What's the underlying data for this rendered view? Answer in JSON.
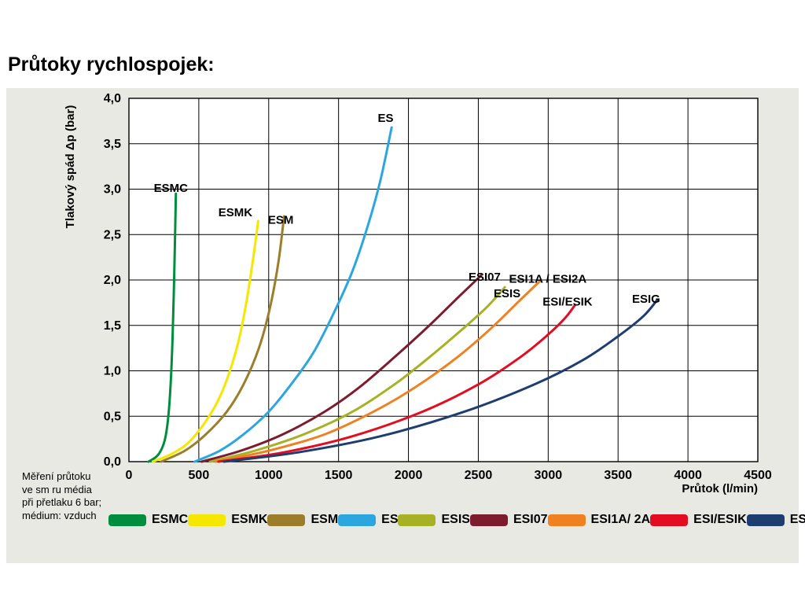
{
  "page": {
    "title": "Průtoky rychlospojek:"
  },
  "note_lines": [
    "Měření průtoku",
    "ve sm ru média",
    "při přetlaku 6 bar;",
    "médium: vzduch"
  ],
  "colors": {
    "panel_bg": "#e9e9e4",
    "plot_bg": "#ffffff",
    "grid": "#000000"
  },
  "chart_data": {
    "type": "line",
    "title": "Průtoky rychlospojek",
    "xlabel": "Průtok (l/min)",
    "ylabel": "Tlakový spád Δp (bar)",
    "xlim": [
      0,
      4500
    ],
    "ylim": [
      0,
      4
    ],
    "grid": true,
    "legend_position": "bottom",
    "x_tick_values": [
      0,
      500,
      1000,
      1500,
      2000,
      2500,
      3000,
      3500,
      4000,
      4500
    ],
    "x_tick_labels": [
      "0",
      "500",
      "1000",
      "1500",
      "2000",
      "2500",
      "3000",
      "3500",
      "4000",
      "4500"
    ],
    "y_tick_values": [
      0,
      0.5,
      1,
      1.5,
      2,
      2.5,
      3,
      3.5,
      4
    ],
    "y_tick_labels": [
      "0,0",
      "0,5",
      "1,0",
      "1,5",
      "2,0",
      "2,5",
      "3,0",
      "3,5",
      "4,0"
    ],
    "series": [
      {
        "name": "ESMC",
        "legend": "ESMC",
        "color": "#008d3e",
        "label": {
          "text": "ESMC",
          "x": 178,
          "y": 2.97
        },
        "points": [
          [
            140,
            0
          ],
          [
            200,
            0.06
          ],
          [
            240,
            0.16
          ],
          [
            265,
            0.3
          ],
          [
            285,
            0.55
          ],
          [
            300,
            0.9
          ],
          [
            312,
            1.35
          ],
          [
            321,
            1.85
          ],
          [
            329,
            2.4
          ],
          [
            336,
            2.95
          ]
        ]
      },
      {
        "name": "ESMK",
        "legend": "ESMK",
        "color": "#f6e700",
        "label": {
          "text": "ESMK",
          "x": 640,
          "y": 2.7
        },
        "points": [
          [
            170,
            0
          ],
          [
            300,
            0.08
          ],
          [
            420,
            0.2
          ],
          [
            520,
            0.38
          ],
          [
            620,
            0.62
          ],
          [
            700,
            0.9
          ],
          [
            780,
            1.3
          ],
          [
            840,
            1.75
          ],
          [
            890,
            2.25
          ],
          [
            925,
            2.65
          ]
        ]
      },
      {
        "name": "ESM",
        "legend": "ESM",
        "color": "#9c7d2a",
        "label": {
          "text": "ESM",
          "x": 995,
          "y": 2.62
        },
        "points": [
          [
            230,
            0
          ],
          [
            400,
            0.12
          ],
          [
            550,
            0.3
          ],
          [
            700,
            0.55
          ],
          [
            820,
            0.85
          ],
          [
            930,
            1.25
          ],
          [
            1010,
            1.7
          ],
          [
            1070,
            2.2
          ],
          [
            1110,
            2.7
          ]
        ]
      },
      {
        "name": "ES",
        "legend": "ES",
        "color": "#2ba6de",
        "label": {
          "text": "ES",
          "x": 1780,
          "y": 3.74
        },
        "points": [
          [
            470,
            0
          ],
          [
            650,
            0.12
          ],
          [
            820,
            0.3
          ],
          [
            1000,
            0.55
          ],
          [
            1160,
            0.85
          ],
          [
            1320,
            1.2
          ],
          [
            1470,
            1.65
          ],
          [
            1600,
            2.1
          ],
          [
            1710,
            2.6
          ],
          [
            1800,
            3.1
          ],
          [
            1880,
            3.68
          ]
        ]
      },
      {
        "name": "ESIS",
        "legend": "ESIS",
        "color": "#a6b223",
        "label": {
          "text": "ESIS",
          "x": 2610,
          "y": 1.81
        },
        "points": [
          [
            580,
            0
          ],
          [
            900,
            0.12
          ],
          [
            1250,
            0.3
          ],
          [
            1600,
            0.55
          ],
          [
            1900,
            0.85
          ],
          [
            2150,
            1.15
          ],
          [
            2380,
            1.45
          ],
          [
            2560,
            1.7
          ],
          [
            2690,
            1.92
          ]
        ]
      },
      {
        "name": "ESI07",
        "legend": "ESI07",
        "color": "#7c1c2c",
        "label": {
          "text": "ESI07",
          "x": 2430,
          "y": 1.99
        },
        "points": [
          [
            520,
            0
          ],
          [
            800,
            0.12
          ],
          [
            1100,
            0.3
          ],
          [
            1400,
            0.55
          ],
          [
            1650,
            0.82
          ],
          [
            1900,
            1.15
          ],
          [
            2150,
            1.5
          ],
          [
            2350,
            1.8
          ],
          [
            2520,
            2.05
          ]
        ]
      },
      {
        "name": "ESI1A2A",
        "legend": "ESI1A/ 2A",
        "color": "#ef8121",
        "label": {
          "text": "ESI1A / ESI2A",
          "x": 2720,
          "y": 1.97
        },
        "points": [
          [
            620,
            0
          ],
          [
            1000,
            0.12
          ],
          [
            1400,
            0.3
          ],
          [
            1750,
            0.55
          ],
          [
            2050,
            0.82
          ],
          [
            2350,
            1.15
          ],
          [
            2600,
            1.48
          ],
          [
            2800,
            1.78
          ],
          [
            2950,
            2.0
          ]
        ]
      },
      {
        "name": "ESIESIK",
        "legend": "ESI/ESIK",
        "color": "#e30c20",
        "label": {
          "text": "ESI/ESIK",
          "x": 2960,
          "y": 1.72
        },
        "points": [
          [
            640,
            0
          ],
          [
            1100,
            0.1
          ],
          [
            1600,
            0.28
          ],
          [
            2100,
            0.55
          ],
          [
            2500,
            0.85
          ],
          [
            2800,
            1.15
          ],
          [
            3000,
            1.4
          ],
          [
            3120,
            1.58
          ],
          [
            3190,
            1.72
          ]
        ]
      },
      {
        "name": "ESIG",
        "legend": "ESIG",
        "color": "#1e3d71",
        "label": {
          "text": "ESIG",
          "x": 3600,
          "y": 1.75
        },
        "points": [
          [
            680,
            0
          ],
          [
            1200,
            0.1
          ],
          [
            1800,
            0.28
          ],
          [
            2400,
            0.55
          ],
          [
            2900,
            0.85
          ],
          [
            3250,
            1.12
          ],
          [
            3500,
            1.38
          ],
          [
            3680,
            1.6
          ],
          [
            3780,
            1.78
          ]
        ]
      }
    ]
  }
}
